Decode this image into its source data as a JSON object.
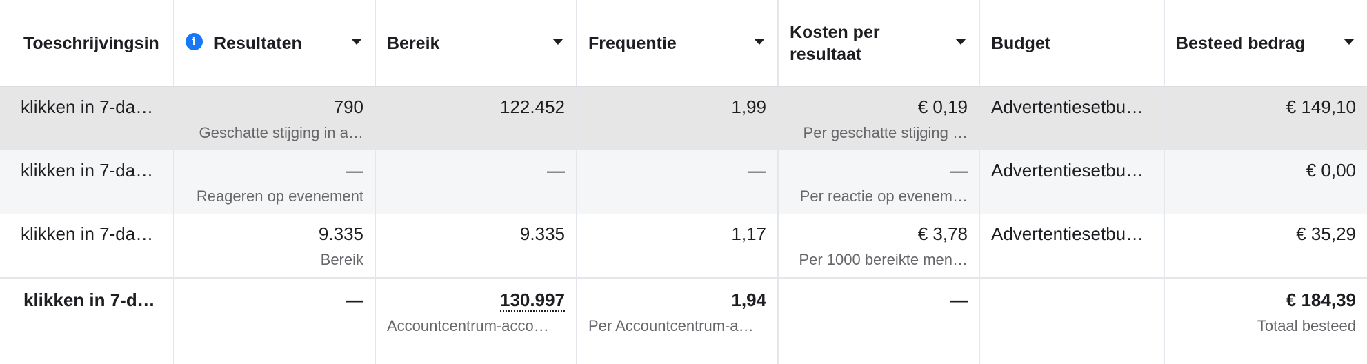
{
  "header": {
    "col_attribution": "Toeschrijvingsin",
    "col_results": "Resultaten",
    "col_reach": "Bereik",
    "col_frequency": "Frequentie",
    "col_cost": "Kosten per resultaat",
    "col_budget": "Budget",
    "col_spent": "Besteed bedrag",
    "info_icon": "i"
  },
  "rows": [
    {
      "attribution": "klikken in 7-da…",
      "results": "790",
      "results_sub": "Geschatte stijging in a…",
      "reach": "122.452",
      "frequency": "1,99",
      "cost": "€ 0,19",
      "cost_sub": "Per geschatte stijging …",
      "budget": "Advertentiesetbu…",
      "spent": "€ 149,10"
    },
    {
      "attribution": "klikken in 7-da…",
      "results": "—",
      "results_sub": "Reageren op evenement",
      "reach": "—",
      "frequency": "—",
      "cost": "—",
      "cost_sub": "Per reactie op evenem…",
      "budget": "Advertentiesetbu…",
      "spent": "€ 0,00"
    },
    {
      "attribution": "klikken in 7-da…",
      "results": "9.335",
      "results_sub": "Bereik",
      "reach": "9.335",
      "frequency": "1,17",
      "cost": "€ 3,78",
      "cost_sub": "Per 1000 bereikte men…",
      "budget": "Advertentiesetbu…",
      "spent": "€ 35,29"
    }
  ],
  "totals": {
    "attribution": "klikken in 7-da…",
    "results": "—",
    "reach": "130.997",
    "reach_sub": "Accountcentrum-acco…",
    "frequency": "1,94",
    "frequency_sub": "Per Accountcentrum-a…",
    "cost": "—",
    "budget": "",
    "spent": "€ 184,39",
    "spent_sub": "Totaal besteed"
  }
}
